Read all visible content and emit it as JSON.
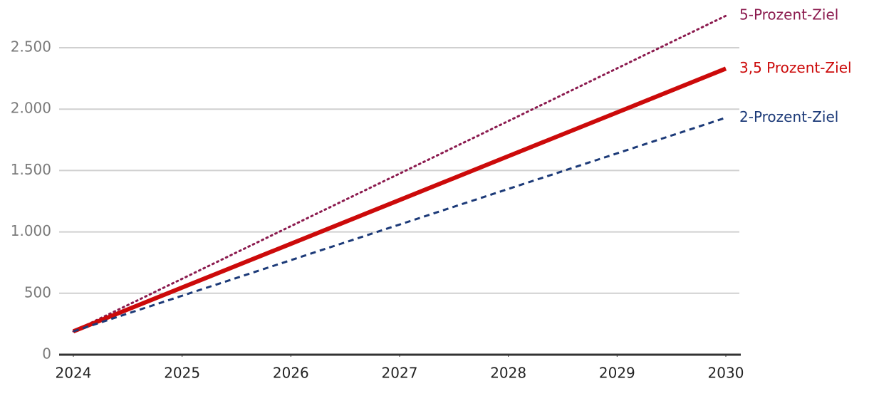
{
  "chart_data": {
    "type": "line",
    "x": [
      2024,
      2025,
      2026,
      2027,
      2028,
      2029,
      2030
    ],
    "xlim": [
      2024,
      2030
    ],
    "xticks": [
      2024,
      2025,
      2026,
      2027,
      2028,
      2029,
      2030
    ],
    "ylim": [
      0,
      2800
    ],
    "yticks": [
      0,
      500,
      {
        "value": 1000,
        "label": "1.000"
      },
      {
        "value": 1500,
        "label": "1.500"
      },
      {
        "value": 2000,
        "label": "2.000"
      },
      {
        "value": 2500,
        "label": "2.500"
      }
    ],
    "grid": true,
    "series": [
      {
        "name": "5-Prozent-Ziel",
        "color": "#8b1a4e",
        "style": "dotted",
        "values": [
          190,
          618,
          1047,
          1475,
          1903,
          2332,
          2760
        ]
      },
      {
        "name": "3,5 Prozent-Ziel",
        "color": "#cc0a0a",
        "style": "solid",
        "values": [
          190,
          547,
          903,
          1260,
          1617,
          1973,
          2330
        ]
      },
      {
        "name": "2-Prozent-Ziel",
        "color": "#1c3a78",
        "style": "dashed",
        "values": [
          190,
          480,
          770,
          1060,
          1350,
          1640,
          1930
        ]
      }
    ]
  }
}
